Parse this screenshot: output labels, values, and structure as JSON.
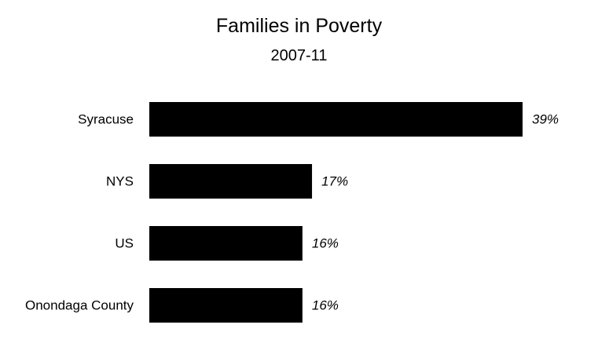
{
  "chart_data": {
    "type": "bar",
    "orientation": "horizontal",
    "title": "Families in Poverty",
    "subtitle": "2007-11",
    "categories": [
      "Syracuse",
      "NYS",
      "US",
      "Onondaga County"
    ],
    "values": [
      39,
      17,
      16,
      16
    ],
    "value_labels": [
      "39%",
      "17%",
      "16%",
      "16%"
    ],
    "xlabel": "",
    "ylabel": "",
    "xlim": [
      0,
      39
    ],
    "grid": false,
    "legend": "none",
    "colors": {
      "bar": "#000000",
      "text": "#000000",
      "background": "#ffffff"
    }
  }
}
